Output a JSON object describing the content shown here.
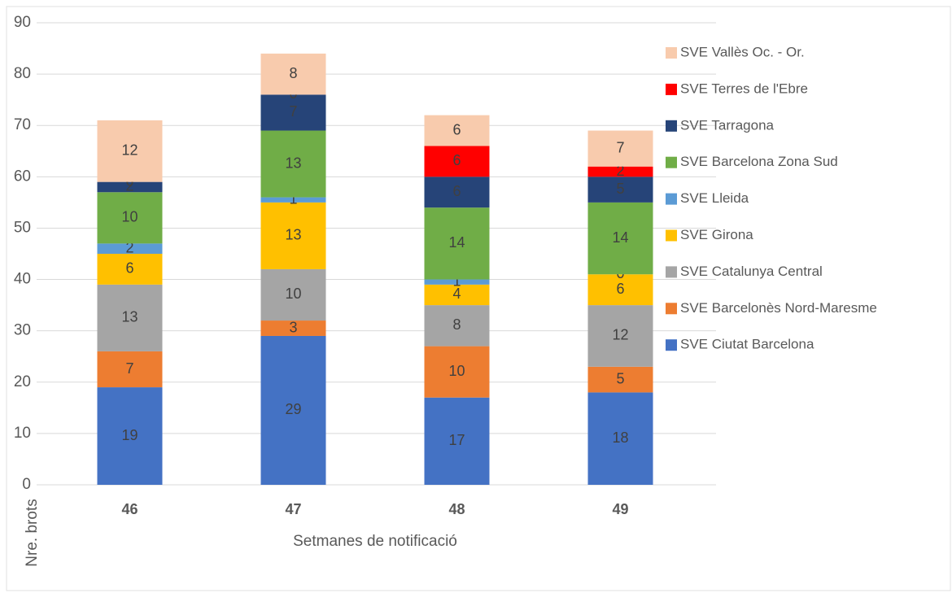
{
  "chart_data": {
    "type": "stacked_bar",
    "x_label": "Setmanes de notificació",
    "y_label": "Nre. brots",
    "categories": [
      "46",
      "47",
      "48",
      "49"
    ],
    "ylim": [
      0,
      90
    ],
    "yticks": [
      0,
      10,
      20,
      30,
      40,
      50,
      60,
      70,
      80,
      90
    ],
    "grid": true,
    "legend": "right",
    "series": [
      {
        "name": "SVE Ciutat Barcelona",
        "color": "#4472c4",
        "values": [
          19,
          29,
          17,
          18
        ]
      },
      {
        "name": "SVE Barcelonès Nord-Maresme",
        "color": "#ed7d31",
        "values": [
          7,
          3,
          10,
          5
        ]
      },
      {
        "name": "SVE Catalunya Central",
        "color": "#a5a5a5",
        "values": [
          13,
          10,
          8,
          12
        ]
      },
      {
        "name": "SVE Girona",
        "color": "#ffc000",
        "values": [
          6,
          13,
          4,
          6
        ]
      },
      {
        "name": "SVE Lleida",
        "color": "#5b9bd5",
        "values": [
          2,
          1,
          1,
          0
        ]
      },
      {
        "name": "SVE Barcelona Zona Sud",
        "color": "#70ad47",
        "values": [
          10,
          13,
          14,
          14
        ]
      },
      {
        "name": "SVE Tarragona",
        "color": "#264478",
        "values": [
          2,
          7,
          6,
          5
        ]
      },
      {
        "name": "SVE Terres de l'Ebre",
        "color": "#ff0000",
        "values": [
          0,
          0,
          6,
          2
        ]
      },
      {
        "name": "SVE Vallès Oc. - Or.",
        "color": "#f8cbad",
        "values": [
          12,
          8,
          6,
          7
        ]
      }
    ]
  }
}
